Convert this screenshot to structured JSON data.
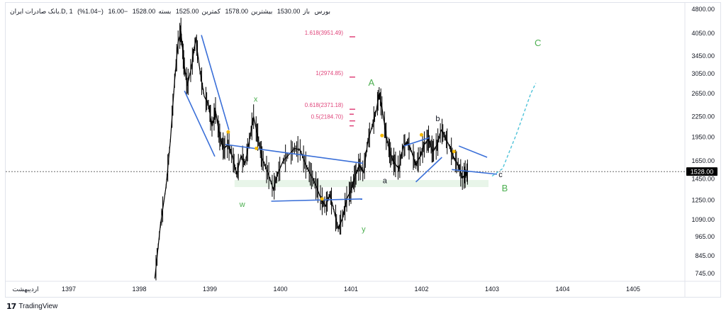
{
  "header": {
    "symbol": "بانک صادرات ایران.D, 1",
    "exchange": "بورس",
    "open_label": "باز",
    "open_value": "1530.00",
    "high_label": "بیشترین",
    "high_value": "1578.00",
    "low_label": "کمترین",
    "low_value": "1525.00",
    "close_label": "بسته",
    "close_value": "1528.00",
    "change": "−16.00",
    "change_pct": "(−1.04%)"
  },
  "footer": {
    "brand": "TradingView",
    "logo_icon": "tradingview-logo-icon"
  },
  "chart_data": {
    "type": "line",
    "title": "",
    "xlabel": "",
    "ylabel": "",
    "y_scale": "log",
    "x_axis_start_label": "اردیبهشت",
    "x_ticks": [
      "1397",
      "1398",
      "1399",
      "1400",
      "1401",
      "1402",
      "1403",
      "1404",
      "1405"
    ],
    "y_ticks": [
      "4800.00",
      "4050.00",
      "3450.00",
      "3050.00",
      "2650.00",
      "2250.00",
      "1950.00",
      "1650.00",
      "1450.00",
      "1250.00",
      "1090.00",
      "965.00",
      "845.00",
      "745.00"
    ],
    "ylim": [
      700,
      4800
    ],
    "last_price": "1528.00",
    "series": [
      {
        "values": [
          [
            1398.22,
            720
          ],
          [
            1398.3,
            1050
          ],
          [
            1398.38,
            1380
          ],
          [
            1398.44,
            1900
          ],
          [
            1398.5,
            2900
          ],
          [
            1398.55,
            3800
          ],
          [
            1398.59,
            4100
          ],
          [
            1398.63,
            3300
          ],
          [
            1398.68,
            2800
          ],
          [
            1398.74,
            3200
          ],
          [
            1398.8,
            3900
          ],
          [
            1398.86,
            3100
          ],
          [
            1398.92,
            2600
          ],
          [
            1398.98,
            2450
          ],
          [
            1399.03,
            2100
          ],
          [
            1399.08,
            2350
          ],
          [
            1399.14,
            1950
          ],
          [
            1399.2,
            1800
          ],
          [
            1399.26,
            1850
          ],
          [
            1399.32,
            1700
          ],
          [
            1399.38,
            1500
          ],
          [
            1399.44,
            1700
          ],
          [
            1399.5,
            1620
          ],
          [
            1399.56,
            1900
          ],
          [
            1399.62,
            2250
          ],
          [
            1399.68,
            1950
          ],
          [
            1399.74,
            1680
          ],
          [
            1399.82,
            1520
          ],
          [
            1399.9,
            1350
          ],
          [
            1399.96,
            1500
          ],
          [
            1400.04,
            1650
          ],
          [
            1400.12,
            1720
          ],
          [
            1400.2,
            1800
          ],
          [
            1400.28,
            1780
          ],
          [
            1400.36,
            1600
          ],
          [
            1400.44,
            1480
          ],
          [
            1400.52,
            1360
          ],
          [
            1400.58,
            1250
          ],
          [
            1400.64,
            1200
          ],
          [
            1400.7,
            1300
          ],
          [
            1400.76,
            1160
          ],
          [
            1400.82,
            1020
          ],
          [
            1400.88,
            1100
          ],
          [
            1400.94,
            1260
          ],
          [
            1401.0,
            1340
          ],
          [
            1401.06,
            1480
          ],
          [
            1401.12,
            1600
          ],
          [
            1401.18,
            1520
          ],
          [
            1401.24,
            1900
          ],
          [
            1401.3,
            2100
          ],
          [
            1401.36,
            2350
          ],
          [
            1401.4,
            2650
          ],
          [
            1401.44,
            2400
          ],
          [
            1401.5,
            1960
          ],
          [
            1401.56,
            1720
          ],
          [
            1401.62,
            1620
          ],
          [
            1401.68,
            1560
          ],
          [
            1401.74,
            1820
          ],
          [
            1401.8,
            1880
          ],
          [
            1401.86,
            1760
          ],
          [
            1401.92,
            1600
          ],
          [
            1401.98,
            1700
          ],
          [
            1402.04,
            1850
          ],
          [
            1402.1,
            1920
          ],
          [
            1402.16,
            1760
          ],
          [
            1402.22,
            1840
          ],
          [
            1402.28,
            2050
          ],
          [
            1402.34,
            1940
          ],
          [
            1402.4,
            1820
          ],
          [
            1402.46,
            1680
          ],
          [
            1402.52,
            1600
          ],
          [
            1402.58,
            1460
          ],
          [
            1402.62,
            1500
          ],
          [
            1402.66,
            1528
          ]
        ]
      }
    ],
    "fibonacci_levels": [
      {
        "label": "1.618(3951.49)",
        "value": 3951.49
      },
      {
        "label": "1(2974.85)",
        "value": 2974.85
      },
      {
        "label": "0.618(2371.18)",
        "value": 2371.18
      },
      {
        "label": "0.5(2184.70)",
        "value": 2184.7
      }
    ],
    "wave_labels": [
      {
        "text": "w",
        "x": 1399.46,
        "y": 1190,
        "color": "#4caf50"
      },
      {
        "text": "x",
        "x": 1399.65,
        "y": 2500,
        "color": "#4caf50"
      },
      {
        "text": "y",
        "x": 1401.18,
        "y": 1000,
        "color": "#4caf50"
      },
      {
        "text": "A",
        "x": 1401.29,
        "y": 2800,
        "color": "#4caf50"
      },
      {
        "text": "a",
        "x": 1401.48,
        "y": 1410,
        "color": "#131722"
      },
      {
        "text": "b",
        "x": 1402.23,
        "y": 2180,
        "color": "#131722"
      },
      {
        "text": "c",
        "x": 1403.12,
        "y": 1470,
        "color": "#131722"
      },
      {
        "text": "B",
        "x": 1403.18,
        "y": 1330,
        "color": "#4caf50"
      },
      {
        "text": "C",
        "x": 1403.65,
        "y": 3700,
        "color": "#4caf50"
      }
    ],
    "projection": [
      [
        1403.0,
        1480
      ],
      [
        1403.15,
        1560
      ],
      [
        1403.35,
        2000
      ],
      [
        1403.55,
        2650
      ],
      [
        1403.62,
        2850
      ]
    ],
    "trend_lines": [
      [
        [
          1398.88,
          4000
        ],
        [
          1399.27,
          2050
        ]
      ],
      [
        [
          1398.64,
          2700
        ],
        [
          1399.07,
          1700
        ]
      ],
      [
        [
          1399.22,
          1850
        ],
        [
          1401.17,
          1620
        ]
      ],
      [
        [
          1399.87,
          1240
        ],
        [
          1401.16,
          1260
        ]
      ],
      [
        [
          1401.75,
          1830
        ],
        [
          1402.11,
          1940
        ]
      ],
      [
        [
          1401.92,
          1420
        ],
        [
          1402.29,
          1690
        ]
      ],
      [
        [
          1402.53,
          1830
        ],
        [
          1402.93,
          1690
        ]
      ],
      [
        [
          1402.43,
          1550
        ],
        [
          1403.07,
          1500
        ]
      ]
    ],
    "markers": [
      [
        1399.26,
        2020
      ],
      [
        1399.66,
        1800
      ],
      [
        1400.59,
        1260
      ],
      [
        1401.44,
        1970
      ],
      [
        1402.0,
        1980
      ],
      [
        1402.46,
        1760
      ]
    ],
    "colors": {
      "price": "#000000",
      "trend": "#3a6fd8",
      "fib": "#e0457b",
      "projection": "#4fc3d9",
      "marker": "#f5b800",
      "last_price_bg": "#000000",
      "zone": "#e8f5e9"
    }
  }
}
